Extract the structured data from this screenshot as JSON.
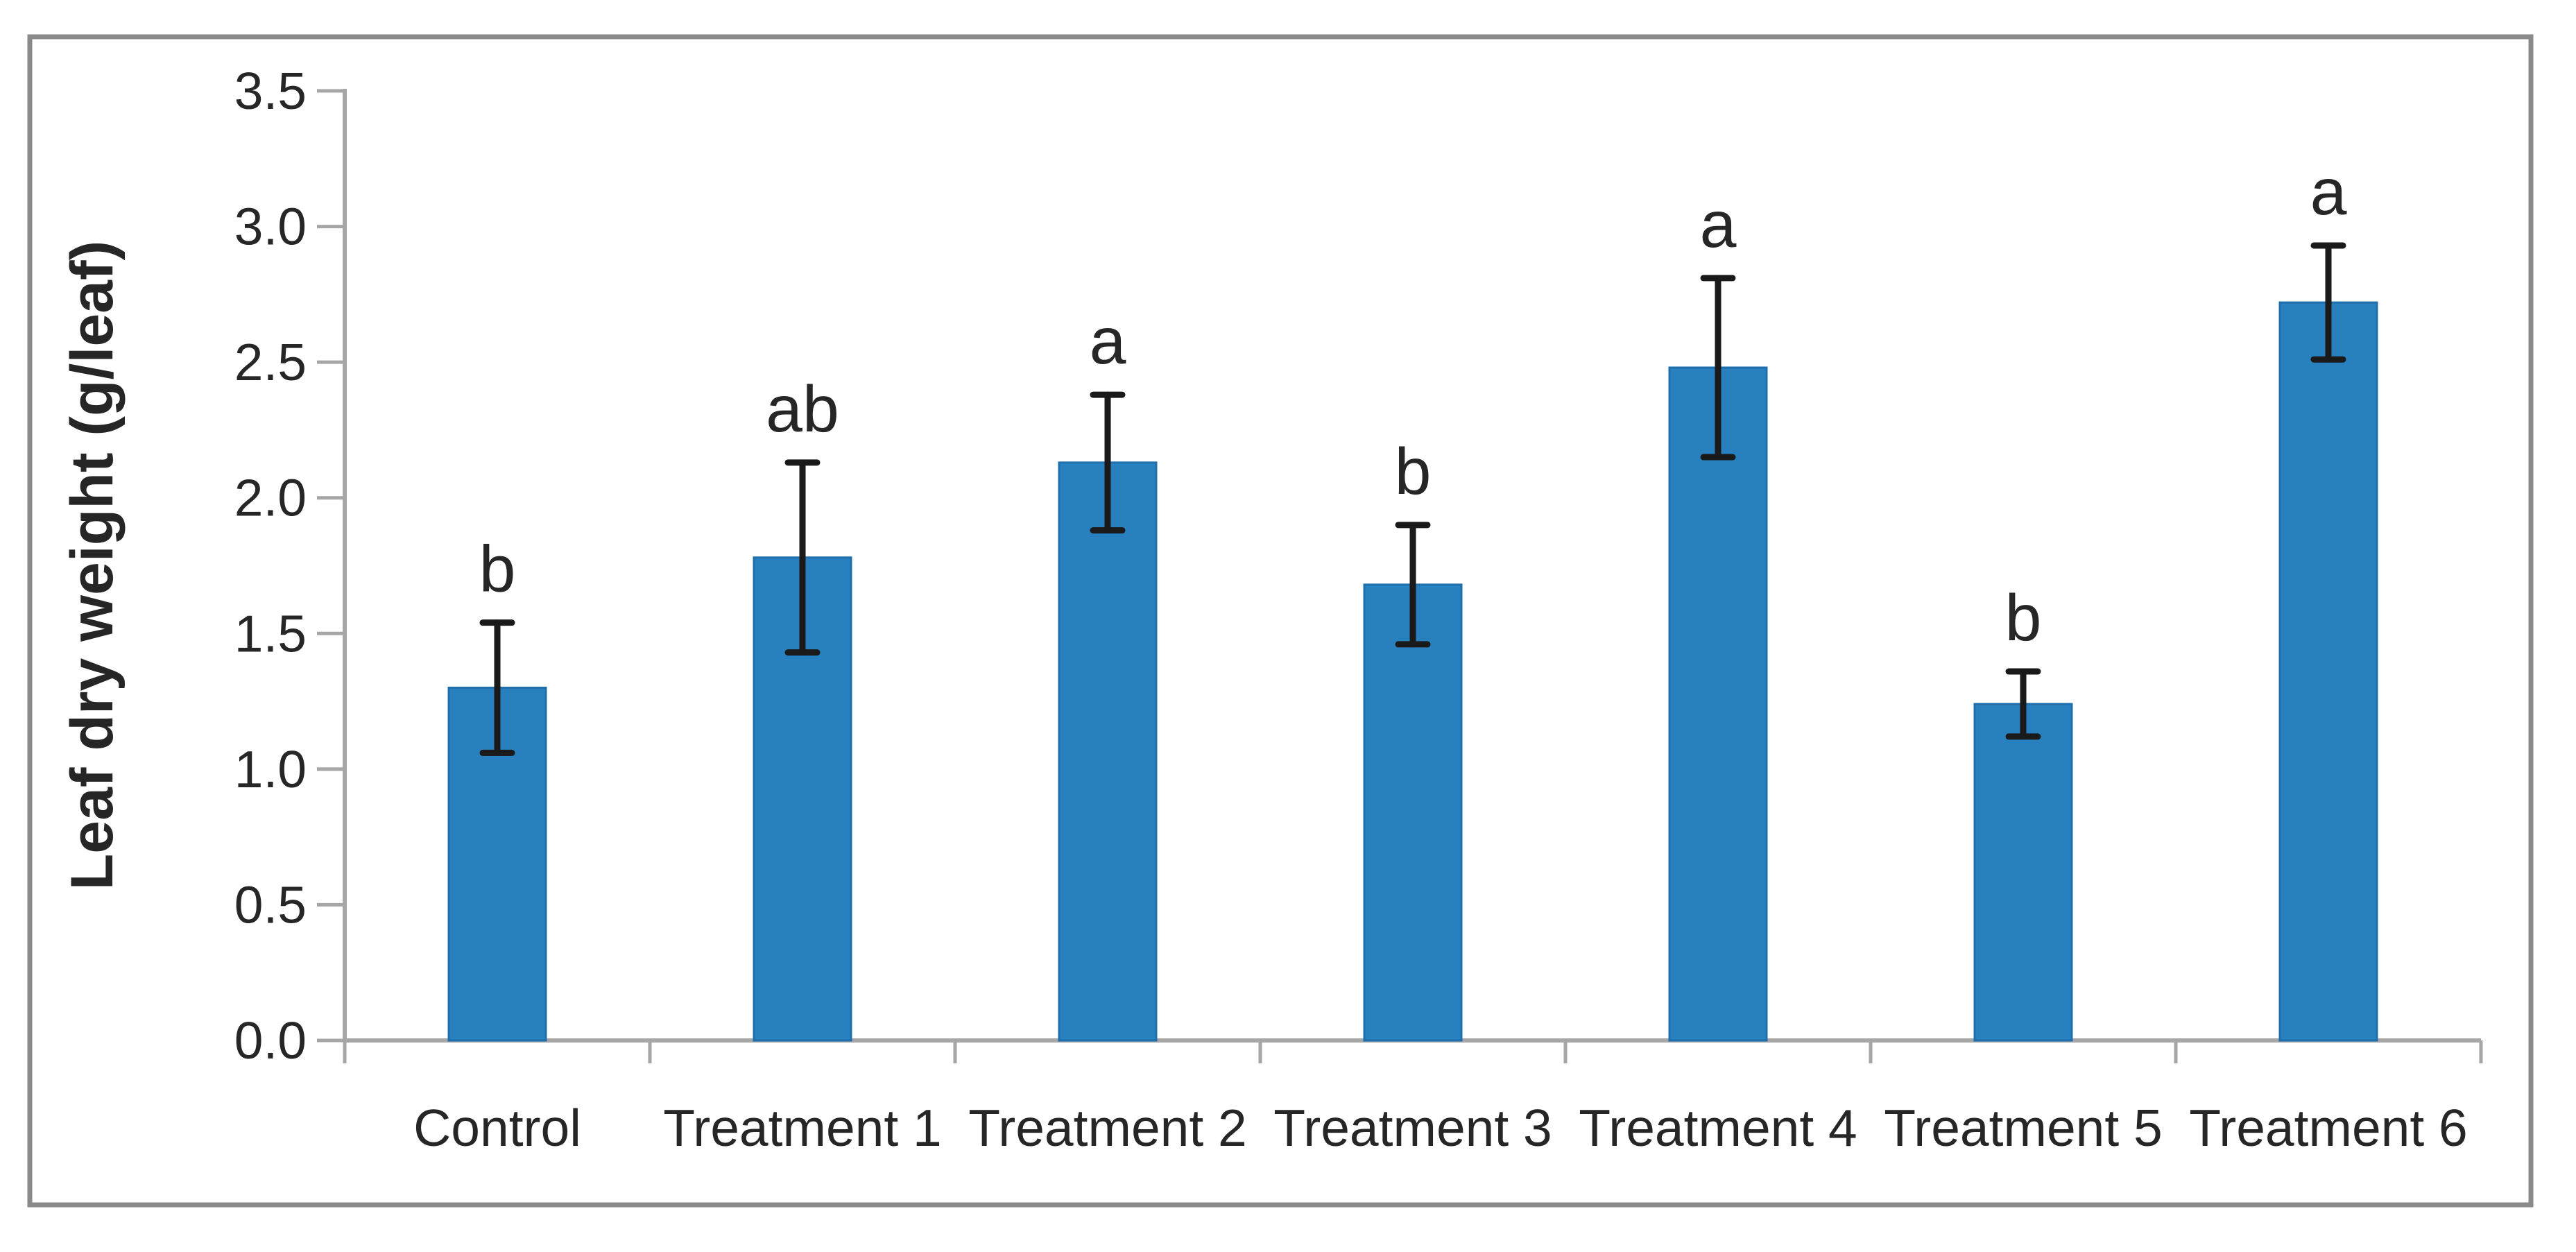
{
  "figure": {
    "background": "#ffffff",
    "border_color": "#8a8a8a",
    "axis_color": "#a6a6a6",
    "text_color": "#262626"
  },
  "chart_data": {
    "type": "bar",
    "title": "",
    "xlabel": "",
    "ylabel": "Leaf dry weight (g/leaf)",
    "ylim": [
      0,
      3.5
    ],
    "ytick_step": 0.5,
    "ytick_labels": [
      "0.0",
      "0.5",
      "1.0",
      "1.5",
      "2.0",
      "2.5",
      "3.0",
      "3.5"
    ],
    "grid": false,
    "legend_position": "none",
    "bar_color": "#2980BE",
    "bar_edge_color": "#1F6FAD",
    "error_bar_color": "#1a1a1a",
    "categories": [
      "Control",
      "Treatment 1",
      "Treatment 2",
      "Treatment 3",
      "Treatment 4",
      "Treatment 5",
      "Treatment 6"
    ],
    "values": [
      1.3,
      1.78,
      2.13,
      1.68,
      2.48,
      1.24,
      2.72
    ],
    "errors": [
      0.24,
      0.35,
      0.25,
      0.22,
      0.33,
      0.12,
      0.21
    ],
    "sig_letters": [
      "b",
      "ab",
      "a",
      "b",
      "a",
      "b",
      "a"
    ]
  }
}
